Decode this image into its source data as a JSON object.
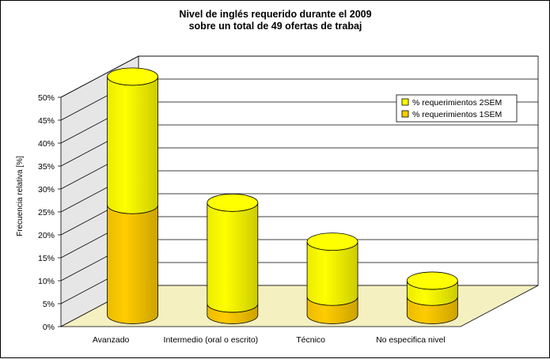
{
  "chart_data": {
    "type": "bar",
    "style": "3d-stacked-cylinder",
    "title_lines": [
      "Nivel de inglés requerido durante el 2009",
      "sobre un total de 49 ofertas de trabaj"
    ],
    "ylabel": "Frecuencia relativa [%]",
    "xlabel": "",
    "ylim": [
      0,
      50
    ],
    "y_ticks": [
      "0%",
      "5%",
      "10%",
      "15%",
      "20%",
      "25%",
      "30%",
      "35%",
      "40%",
      "45%",
      "50%"
    ],
    "categories": [
      "Avanzado",
      "Intermedio (oral o escrito)",
      "Técnico",
      "No especifica nivel"
    ],
    "series": [
      {
        "name": "% requerimientos 1SEM",
        "values": [
          24,
          2.5,
          4,
          4
        ],
        "color": "#FFCC00"
      },
      {
        "name": "% requerimientos 2SEM",
        "values": [
          28,
          22,
          12,
          3.5
        ],
        "color": "#FFFF00"
      }
    ],
    "grid": true,
    "legend_position": "right",
    "colors": {
      "floor": "#F5F0C0",
      "wall": "#FFFFFF",
      "side_wall": "#E6E6E6",
      "frame_border": "#000000"
    }
  }
}
